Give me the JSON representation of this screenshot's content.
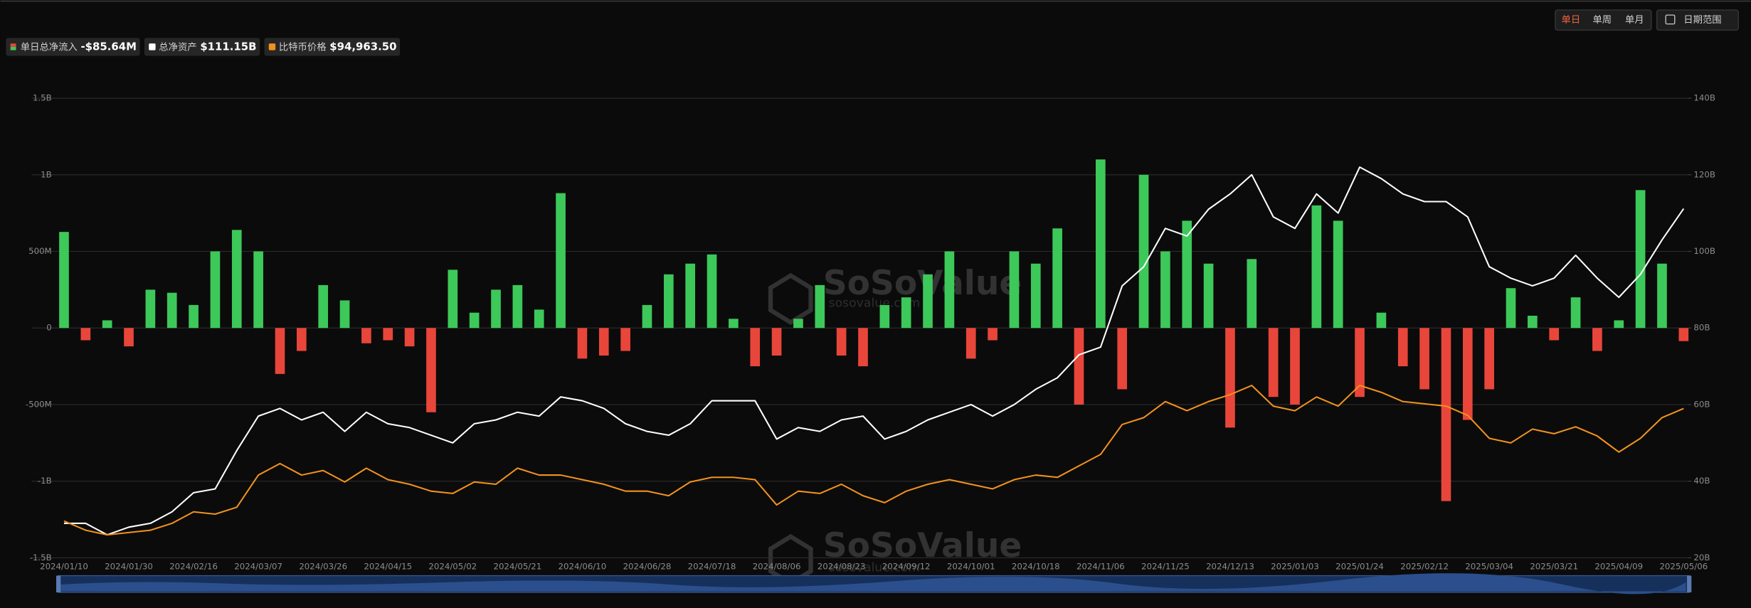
{
  "controls": {
    "periods": [
      "单日",
      "单周",
      "单月"
    ],
    "date_range": "日期范围"
  },
  "watermarks": [
    "SoSoValue",
    "sosovalue.com"
  ],
  "chart_data": {
    "type": "combo",
    "categories": [
      "2024/01/10",
      null,
      null,
      "2024/01/30",
      null,
      null,
      "2024/02/16",
      null,
      null,
      "2024/03/07",
      null,
      null,
      "2024/03/26",
      null,
      null,
      "2024/04/15",
      null,
      null,
      "2024/05/02",
      null,
      null,
      "2024/05/21",
      null,
      null,
      "2024/06/10",
      null,
      null,
      "2024/06/28",
      null,
      null,
      "2024/07/18",
      null,
      null,
      "2024/08/06",
      null,
      null,
      "2024/08/23",
      null,
      null,
      "2024/09/12",
      null,
      null,
      "2024/10/01",
      null,
      null,
      "2024/10/18",
      null,
      null,
      "2024/11/06",
      null,
      null,
      "2024/11/25",
      null,
      null,
      "2024/12/13",
      null,
      null,
      "2025/01/03",
      null,
      null,
      "2025/01/24",
      null,
      null,
      "2025/02/12",
      null,
      null,
      "2025/03/04",
      null,
      null,
      "2025/03/21",
      null,
      null,
      "2025/04/09",
      null,
      null,
      "2025/05/06"
    ],
    "ylim": [
      -1500,
      1500
    ],
    "yticks": [
      {
        "value": -1500,
        "label": "-1.5B"
      },
      {
        "value": -1000,
        "label": "-1B"
      },
      {
        "value": -500,
        "label": "-500M"
      },
      0,
      {
        "value": 500,
        "label": "500M"
      },
      {
        "value": 1000,
        "label": "1B"
      },
      {
        "value": 1500,
        "label": "1.5B"
      }
    ],
    "y2lim": [
      20,
      140
    ],
    "y2ticks": [
      {
        "value": 20,
        "label": "20B"
      },
      {
        "value": 40,
        "label": "40B"
      },
      {
        "value": 60,
        "label": "60B"
      },
      {
        "value": 80,
        "label": "80B"
      },
      {
        "value": 100,
        "label": "100B"
      },
      {
        "value": 120,
        "label": "120B"
      },
      {
        "value": 140,
        "label": "140B"
      }
    ],
    "y3lim": [
      30000,
      230000
    ],
    "grid": true,
    "series": [
      {
        "name": "单日总净流入",
        "type": "bar",
        "legend_value": "-$85.64M",
        "color": "#e8463a",
        "color_positive": "#3dc85a",
        "color_negative": "#e8463a",
        "values": [
          627,
          -80,
          50,
          -120,
          250,
          230,
          150,
          500,
          640,
          500,
          -300,
          -150,
          280,
          180,
          -100,
          -80,
          -120,
          -550,
          380,
          100,
          250,
          280,
          120,
          880,
          -200,
          -180,
          -150,
          150,
          350,
          420,
          480,
          60,
          -250,
          -180,
          60,
          280,
          -180,
          -250,
          150,
          200,
          350,
          500,
          -200,
          -80,
          500,
          420,
          650,
          -500,
          1100,
          -400,
          1000,
          500,
          700,
          420,
          -650,
          450,
          -450,
          -500,
          800,
          700,
          -450,
          100,
          -250,
          -400,
          -1130,
          -600,
          -400,
          260,
          80,
          -80,
          200,
          -150,
          50,
          900,
          420,
          -85.64
        ]
      },
      {
        "name": "总净资产",
        "type": "line",
        "axis": "y2",
        "legend_value": "$111.15B",
        "color": "#ffffff",
        "values": [
          29,
          29,
          26,
          28,
          29,
          32,
          37,
          38,
          48,
          57,
          59,
          56,
          58,
          53,
          58,
          55,
          54,
          52,
          50,
          55,
          56,
          58,
          57,
          62,
          61,
          59,
          55,
          53,
          52,
          55,
          61,
          61,
          61,
          51,
          54,
          53,
          56,
          57,
          51,
          53,
          56,
          58,
          60,
          57,
          60,
          64,
          67,
          73,
          75,
          91,
          96,
          106,
          104,
          111,
          115,
          120,
          109,
          106,
          115,
          110,
          122,
          119,
          115,
          113,
          113,
          109,
          96,
          93,
          91,
          93,
          99,
          93,
          88,
          94,
          103,
          111.15
        ]
      },
      {
        "name": "比特币价格",
        "type": "line",
        "axis": "y3",
        "legend_value": "$94,963.50",
        "color": "#f2921d",
        "values": [
          46000,
          42000,
          40000,
          41000,
          42000,
          45000,
          50000,
          49000,
          52000,
          66000,
          71000,
          66000,
          68000,
          63000,
          69000,
          64000,
          62000,
          59000,
          58000,
          63000,
          62000,
          69000,
          66000,
          66000,
          64000,
          62000,
          59000,
          59000,
          57000,
          63000,
          65000,
          65000,
          64000,
          53000,
          59000,
          58000,
          62000,
          57000,
          54000,
          59000,
          62000,
          64000,
          62000,
          60000,
          64000,
          66000,
          65000,
          70000,
          75000,
          88000,
          91000,
          98000,
          94000,
          98000,
          101000,
          105000,
          96000,
          94000,
          100000,
          96000,
          105000,
          102000,
          98000,
          97000,
          96000,
          92000,
          82000,
          80000,
          86000,
          84000,
          87000,
          83000,
          76000,
          82000,
          91000,
          94963.5
        ]
      }
    ]
  }
}
